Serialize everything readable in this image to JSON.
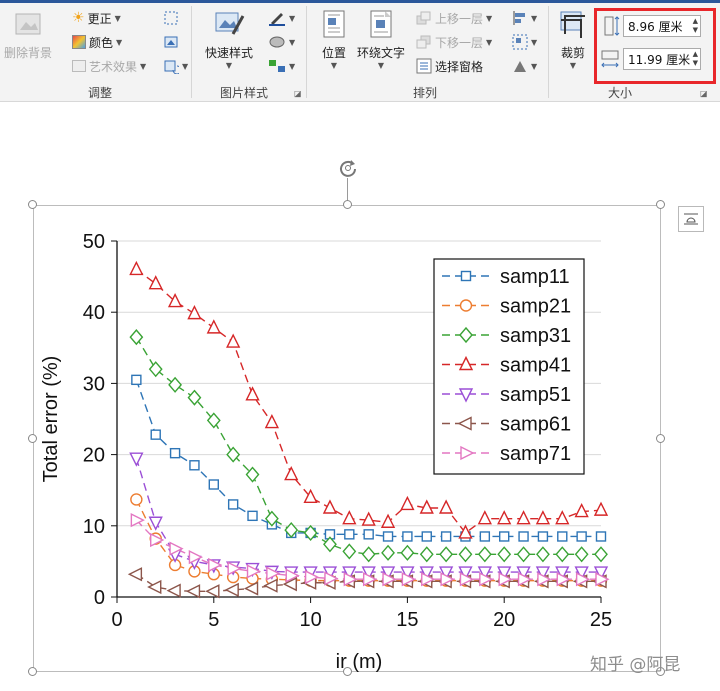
{
  "ribbon": {
    "adjust": {
      "remove_bg": "删除背景",
      "corrections": "更正",
      "color": "颜色",
      "artistic": "艺术效果",
      "group_label": "调整"
    },
    "picture_styles": {
      "quick_styles": "快速样式",
      "group_label": "图片样式"
    },
    "arrange": {
      "position": "位置",
      "wrap_text": "环绕文字",
      "bring_forward": "上移一层",
      "send_backward": "下移一层",
      "selection_pane": "选择窗格",
      "group_label": "排列"
    },
    "size": {
      "crop": "裁剪",
      "height": "8.96 厘米",
      "width": "11.99 厘米",
      "group_label": "大小"
    }
  },
  "watermark": "知乎 @阿昆",
  "colors": {
    "samp11": "#2e75b6",
    "samp21": "#ed7d31",
    "samp31": "#3aa335",
    "samp41": "#d62728",
    "samp51": "#9b4fd6",
    "samp61": "#8c564b",
    "samp71": "#e377c2",
    "highlight": "#e8262a"
  },
  "chart_data": {
    "type": "line",
    "xlabel": "ir (m)",
    "ylabel": "Total error (%)",
    "xlim": [
      0,
      25
    ],
    "ylim": [
      0,
      50
    ],
    "xticks": [
      0,
      5,
      10,
      15,
      20,
      25
    ],
    "yticks": [
      0,
      10,
      20,
      30,
      40,
      50
    ],
    "grid": "horizontal",
    "legend_position": "top-right",
    "x": [
      1,
      2,
      3,
      4,
      5,
      6,
      7,
      8,
      9,
      10,
      11,
      12,
      13,
      14,
      15,
      16,
      17,
      18,
      19,
      20,
      21,
      22,
      23,
      24,
      25
    ],
    "series": [
      {
        "name": "samp11",
        "marker": "square",
        "values": [
          30.5,
          22.8,
          20.2,
          18.5,
          15.8,
          13.0,
          11.4,
          10.2,
          9.0,
          9.0,
          8.8,
          8.8,
          8.8,
          8.5,
          8.5,
          8.5,
          8.5,
          8.5,
          8.5,
          8.5,
          8.5,
          8.5,
          8.5,
          8.5,
          8.5
        ]
      },
      {
        "name": "samp21",
        "marker": "circle",
        "values": [
          13.7,
          8.2,
          4.5,
          3.6,
          3.2,
          2.8,
          2.6,
          2.5,
          2.4,
          2.3,
          2.3,
          2.3,
          2.3,
          2.3,
          2.3,
          2.3,
          2.3,
          2.3,
          2.3,
          2.3,
          2.3,
          2.3,
          2.3,
          2.3,
          2.3
        ]
      },
      {
        "name": "samp31",
        "marker": "diamond",
        "values": [
          36.5,
          32.0,
          29.8,
          28.0,
          24.8,
          20.0,
          17.2,
          11.0,
          9.4,
          9.0,
          7.4,
          6.4,
          6.0,
          6.2,
          6.2,
          6.0,
          6.0,
          6.0,
          6.0,
          6.0,
          6.0,
          6.0,
          6.0,
          6.0,
          6.0
        ]
      },
      {
        "name": "samp41",
        "marker": "triangle-up",
        "values": [
          46.0,
          44.0,
          41.5,
          39.8,
          37.8,
          35.8,
          28.4,
          24.5,
          17.2,
          14.0,
          12.5,
          11.0,
          10.8,
          10.5,
          13.0,
          12.5,
          12.5,
          9.0,
          11.0,
          11.0,
          11.0,
          11.0,
          11.0,
          12.0,
          12.2
        ]
      },
      {
        "name": "samp51",
        "marker": "triangle-down",
        "values": [
          19.5,
          10.5,
          6.0,
          5.0,
          4.5,
          4.2,
          4.0,
          3.6,
          3.5,
          3.5,
          3.5,
          3.5,
          3.5,
          3.5,
          3.5,
          3.5,
          3.5,
          3.5,
          3.5,
          3.5,
          3.5,
          3.5,
          3.5,
          3.5,
          3.5
        ]
      },
      {
        "name": "samp61",
        "marker": "triangle-left",
        "values": [
          3.2,
          1.4,
          0.9,
          0.8,
          0.8,
          1.0,
          1.2,
          1.6,
          1.8,
          2.0,
          2.0,
          2.2,
          2.2,
          2.2,
          2.2,
          2.2,
          2.2,
          2.2,
          2.2,
          2.2,
          2.2,
          2.2,
          2.2,
          2.2,
          2.2
        ]
      },
      {
        "name": "samp71",
        "marker": "triangle-right",
        "values": [
          10.8,
          8.0,
          6.8,
          5.6,
          4.5,
          4.0,
          3.6,
          3.3,
          3.0,
          2.8,
          2.6,
          2.5,
          2.5,
          2.5,
          2.5,
          2.5,
          2.5,
          2.5,
          2.5,
          2.5,
          2.5,
          2.5,
          2.5,
          2.5,
          2.5
        ]
      }
    ]
  }
}
